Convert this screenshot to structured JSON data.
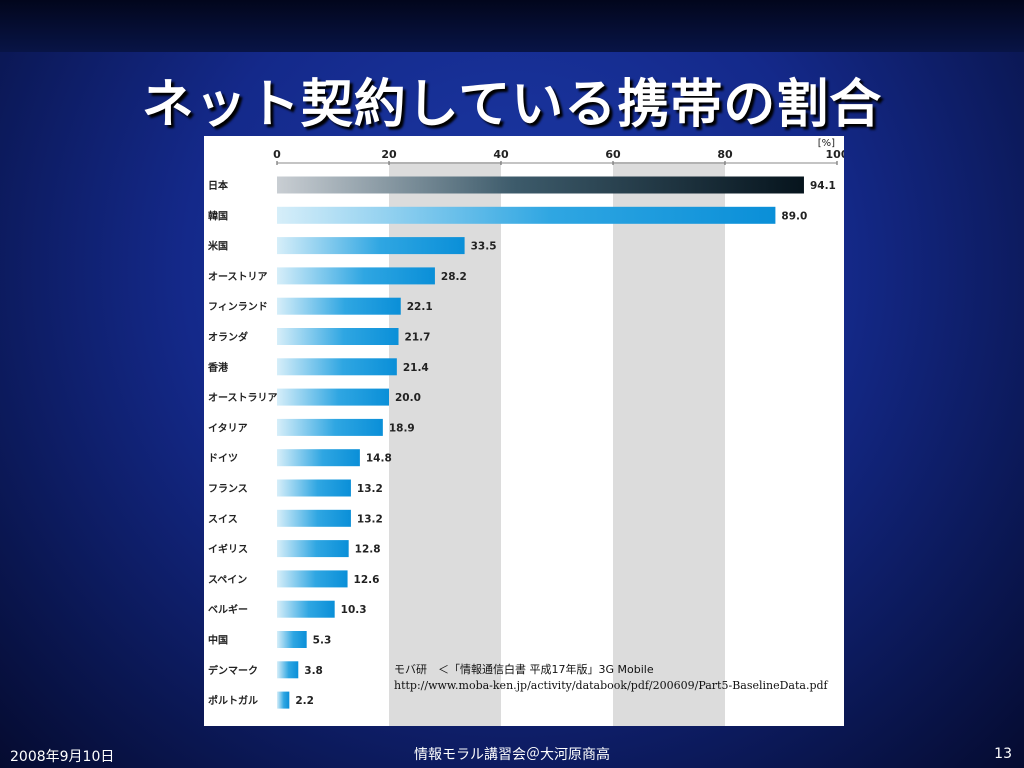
{
  "slide": {
    "title": "ネット契約している携帯の割合",
    "footer_date": "2008年9月10日",
    "footer_center": "情報モラル講習会＠大河原商高",
    "page_number": "13"
  },
  "source": {
    "line1": "モバ研　＜「情報通信白書 平成17年版」3G Mobile",
    "line2": "http://www.moba-ken.jp/activity/databook/pdf/200609/Part5-BaselineData.pdf"
  },
  "colors": {
    "background": "#14298a",
    "bar_blue": "#0a8fd8",
    "bar_japan": "#0b2233",
    "band_gray": "#dcdcdc"
  },
  "chart_data": {
    "type": "bar",
    "orientation": "horizontal",
    "unit_label": "[%]",
    "xlim": [
      0,
      100
    ],
    "x_ticks": [
      "0",
      "20",
      "40",
      "60",
      "80",
      "100"
    ],
    "categories": [
      "日本",
      "韓国",
      "米国",
      "オーストリア",
      "フィンランド",
      "オランダ",
      "香港",
      "オーストラリア",
      "イタリア",
      "ドイツ",
      "フランス",
      "スイス",
      "イギリス",
      "スペイン",
      "ベルギー",
      "中国",
      "デンマーク",
      "ポルトガル"
    ],
    "values": [
      94.1,
      89.0,
      33.5,
      28.2,
      22.1,
      21.7,
      21.4,
      20.0,
      18.9,
      14.8,
      13.2,
      13.2,
      12.8,
      12.6,
      10.3,
      5.3,
      3.8,
      2.2
    ],
    "value_labels": [
      "94.1",
      "89.0",
      "33.5",
      "28.2",
      "22.1",
      "21.7",
      "21.4",
      "20.0",
      "18.9",
      "14.8",
      "13.2",
      "13.2",
      "12.8",
      "12.6",
      "10.3",
      "5.3",
      "3.8",
      "2.2"
    ],
    "grid_bands": true,
    "legend": "none"
  }
}
